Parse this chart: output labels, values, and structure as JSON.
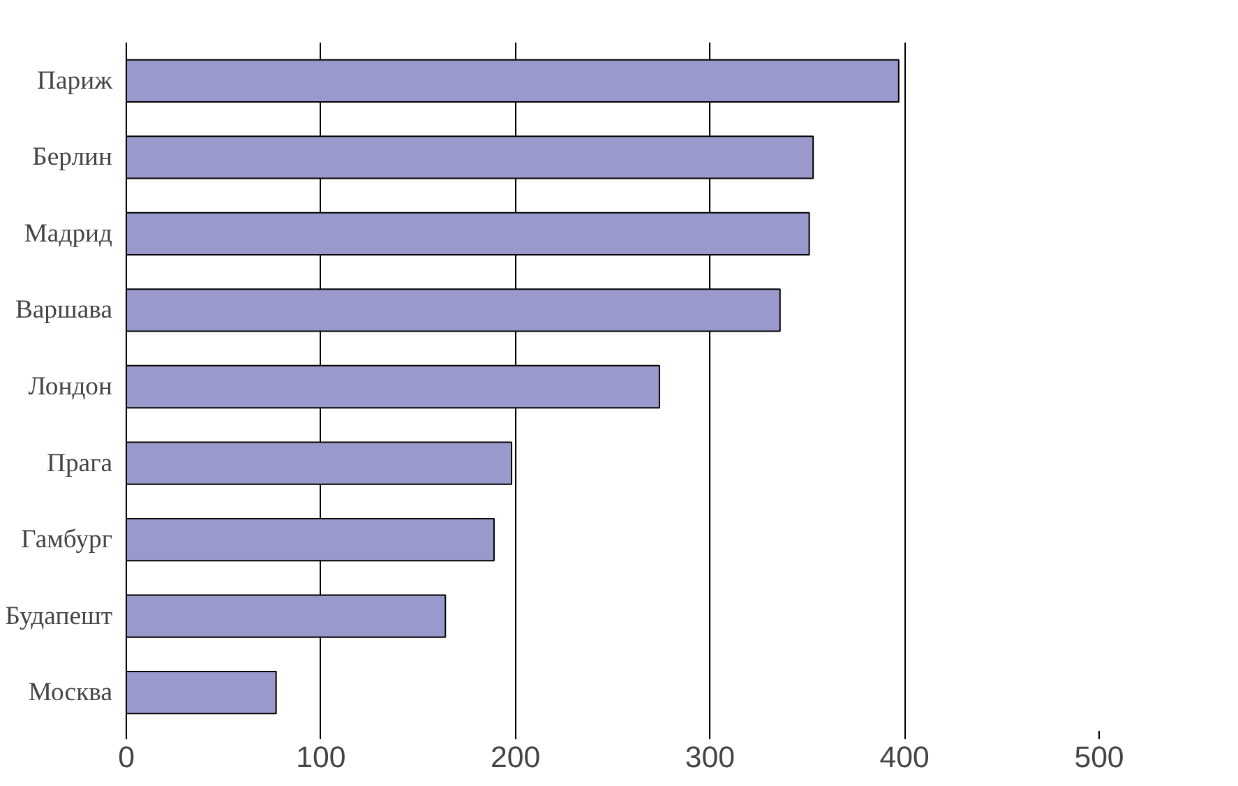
{
  "chart_data": {
    "type": "bar",
    "orientation": "horizontal",
    "categories": [
      "Париж",
      "Берлин",
      "Мадрид",
      "Варшава",
      "Лондон",
      "Прага",
      "Гамбург",
      "Будапешт",
      "Москва"
    ],
    "values": [
      397,
      353,
      351,
      336,
      274,
      198,
      189,
      164,
      77
    ],
    "color": "#9999cc",
    "xlim": [
      0,
      500
    ],
    "xticks": [
      0,
      100,
      200,
      300,
      400,
      500
    ],
    "grid": "x"
  }
}
